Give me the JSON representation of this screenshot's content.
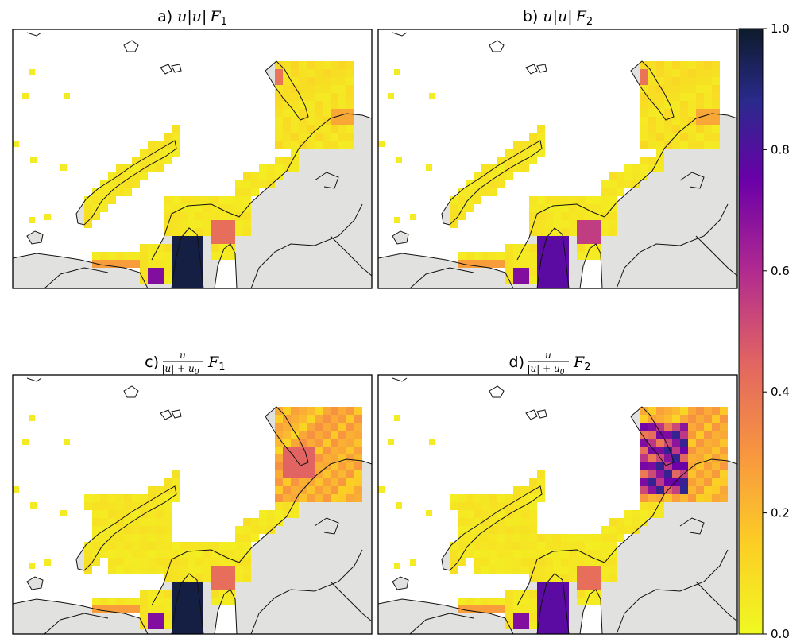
{
  "panels": [
    {
      "id": "a",
      "prefix": "a)",
      "expr": "u|u|",
      "fvar": "F",
      "fsub": "1",
      "fractional": false
    },
    {
      "id": "b",
      "prefix": "b)",
      "expr": "u|u|",
      "fvar": "F",
      "fsub": "2",
      "fractional": false
    },
    {
      "id": "c",
      "prefix": "c)",
      "num": "u",
      "den": "|u| + u",
      "densub": "0",
      "fvar": "F",
      "fsub": "1",
      "fractional": true
    },
    {
      "id": "d",
      "prefix": "d)",
      "num": "u",
      "den": "|u| + u",
      "densub": "0",
      "fvar": "F",
      "fsub": "2",
      "fractional": true
    }
  ],
  "colorbar": {
    "ticks": [
      "0.0",
      "0.2",
      "0.4",
      "0.6",
      "0.8",
      "1.0"
    ],
    "min": 0.0,
    "max": 1.0,
    "colormap": "plasma_r",
    "colors": [
      "#f0f921",
      "#f89540",
      "#cc4778",
      "#7e03a8",
      "#0d0887"
    ]
  },
  "chart_data": {
    "type": "heatmap",
    "layout": "2x2 map grid with shared colorbar",
    "value_range": [
      0.0,
      1.0
    ],
    "panels": [
      {
        "panel": "a",
        "peak_regions": [
          "south channel (~1.0)",
          "gulf inlet (~0.4)"
        ],
        "background": "~0.05"
      },
      {
        "panel": "b",
        "peak_regions": [
          "south channel (~0.8)",
          "gulf inlet (~0.5)"
        ],
        "background": "~0.05"
      },
      {
        "panel": "c",
        "peak_regions": [
          "south channel (~1.0)",
          "northeast archipelago (~0.5)"
        ],
        "background": "~0.1"
      },
      {
        "panel": "d",
        "peak_regions": [
          "northeast archipelago (~0.9)",
          "south channel (~0.8)"
        ],
        "background": "~0.1"
      }
    ]
  }
}
